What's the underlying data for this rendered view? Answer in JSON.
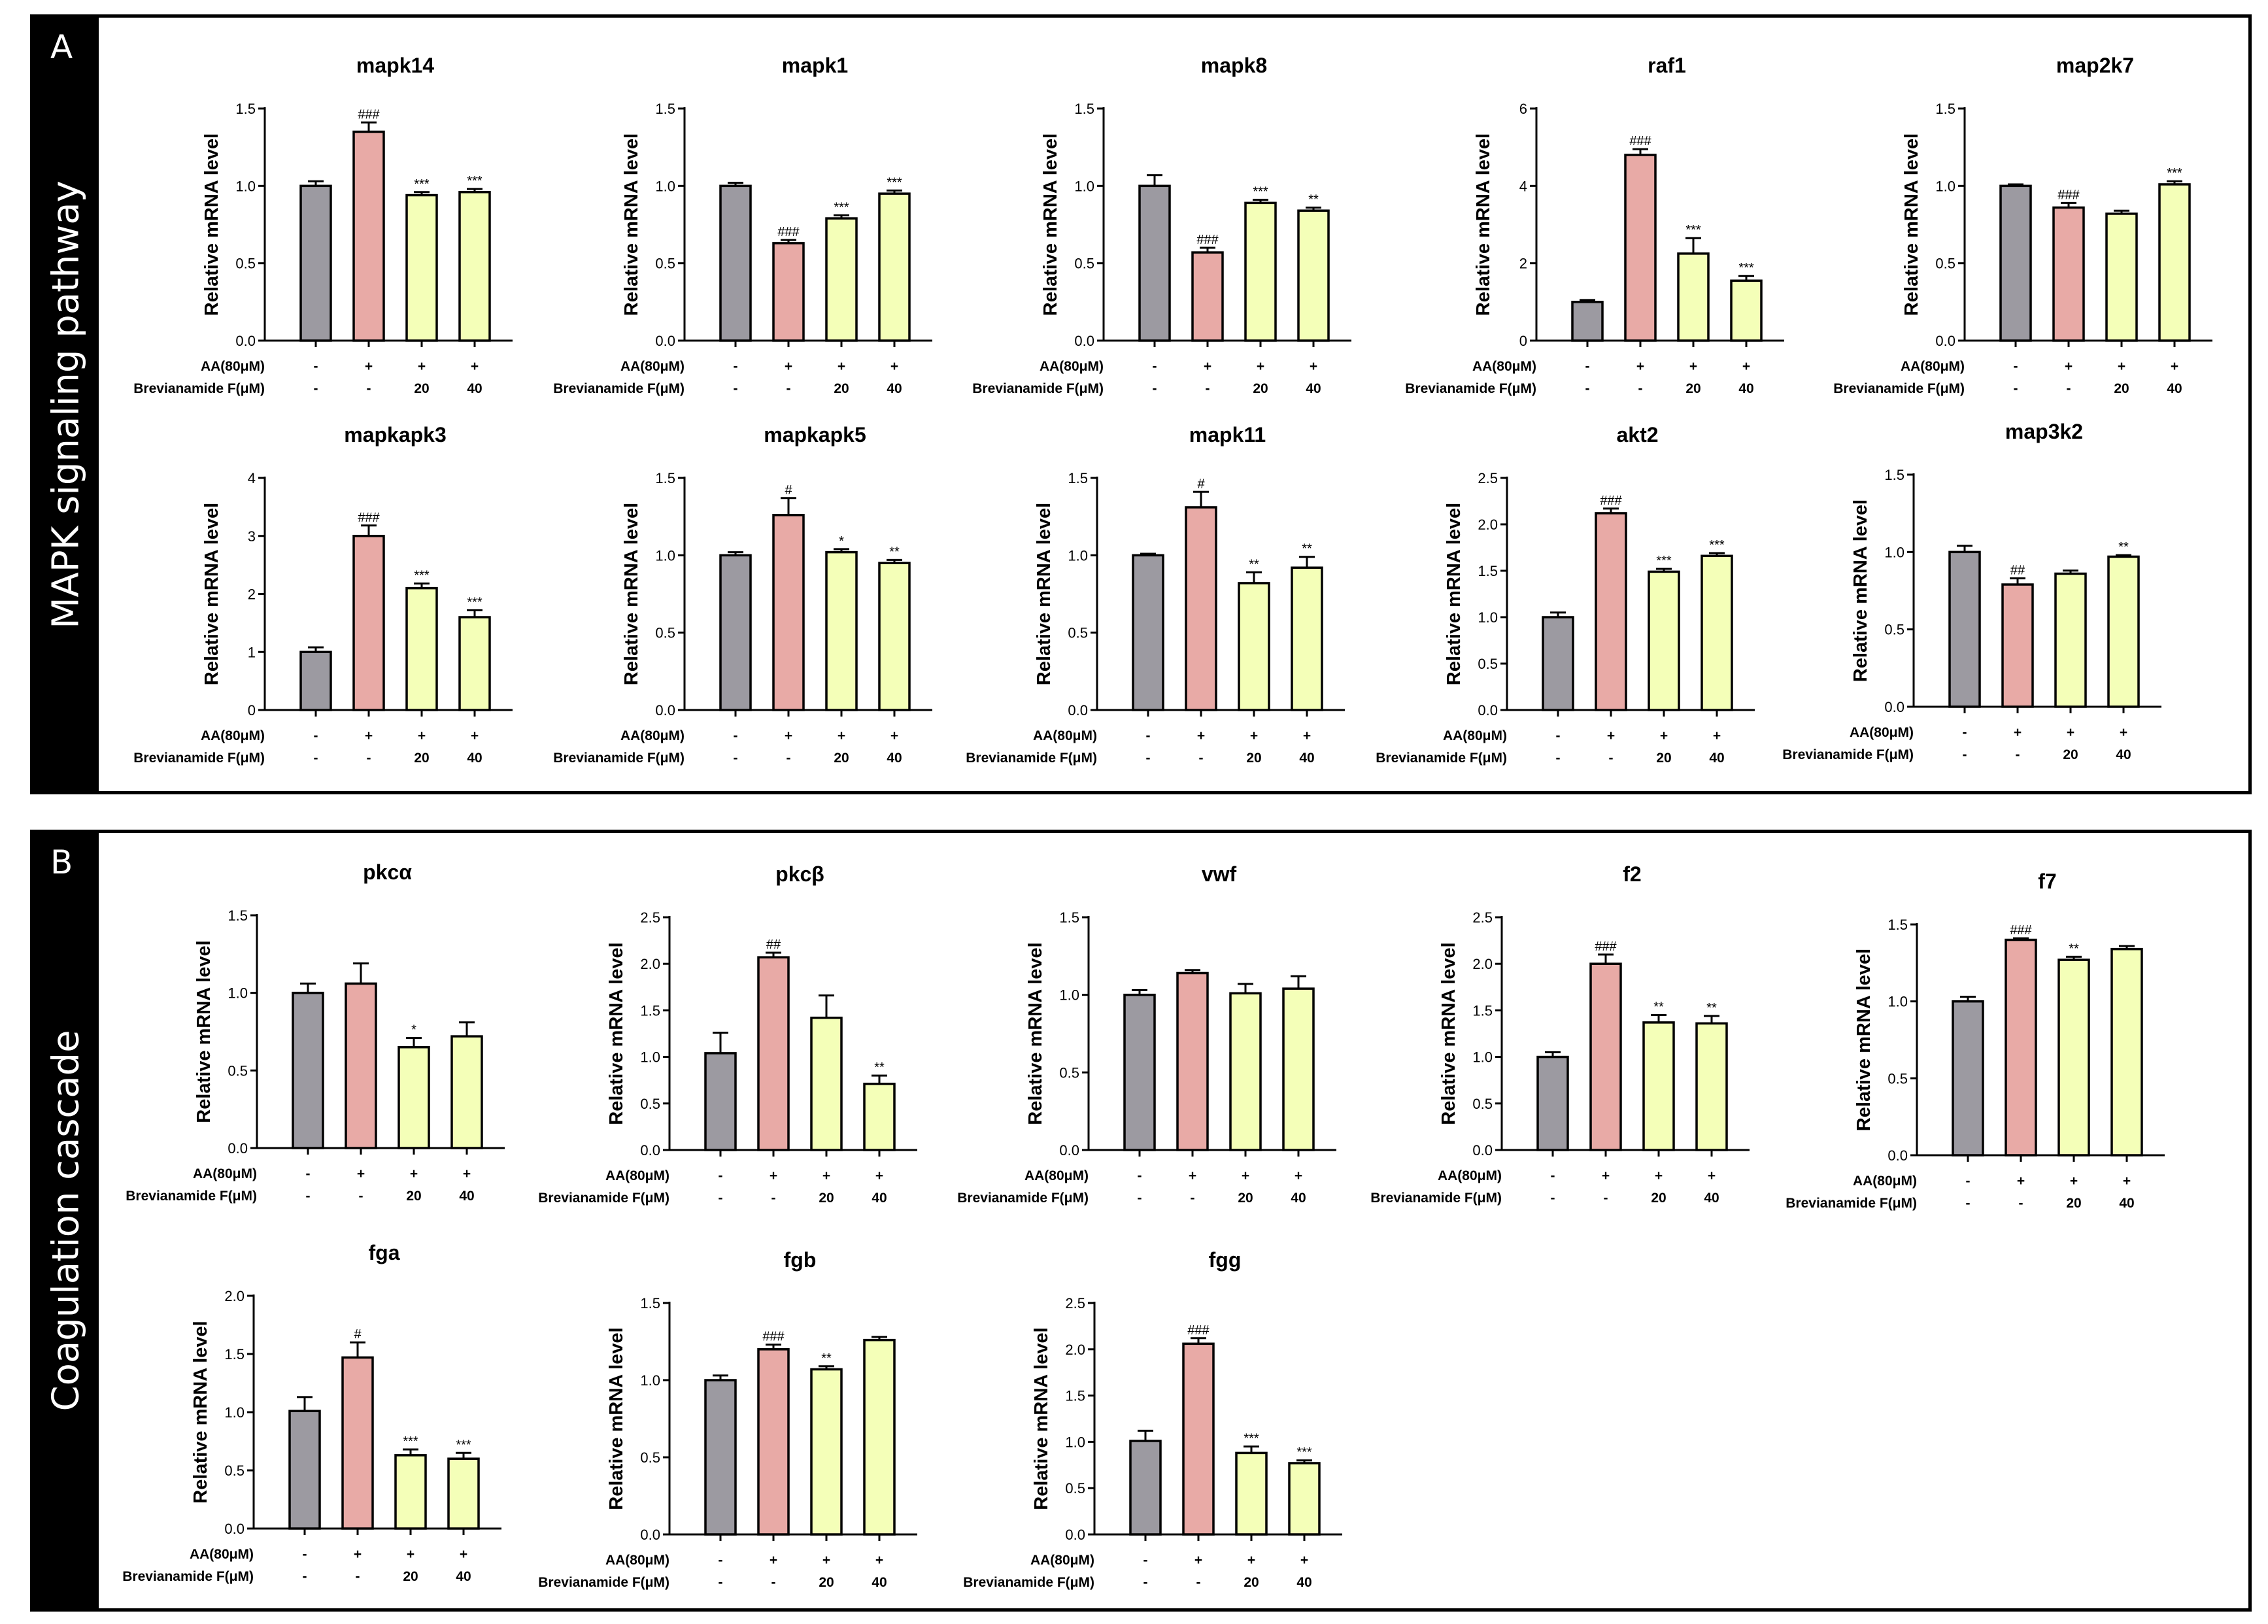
{
  "panels": [
    {
      "letter": "A",
      "title": "MAPK signaling pathway"
    },
    {
      "letter": "B",
      "title": "Coagulation cascade"
    }
  ],
  "colors": {
    "control": "#9c9aa1",
    "model": "#e8aaa6",
    "treatment": "#f4ffb8",
    "outline": "#000000"
  },
  "chart_data": [
    {
      "type": "bar",
      "panel": "A",
      "title": "mapk14",
      "ylabel": "Relative mRNA level",
      "ylim": [
        0,
        1.5
      ],
      "yticks": [
        "0.0",
        "0.5",
        "1.0",
        "1.5"
      ],
      "values": [
        1.0,
        1.35,
        0.94,
        0.96
      ],
      "errors": [
        0.03,
        0.06,
        0.02,
        0.02
      ],
      "marks": [
        "",
        "###",
        "***",
        "***"
      ],
      "row_labels": [
        "AA(80μM)",
        "Brevianamide F(μM)"
      ],
      "row1": [
        "-",
        "+",
        "+",
        "+"
      ],
      "row2": [
        "-",
        "-",
        "20",
        "40"
      ]
    },
    {
      "type": "bar",
      "panel": "A",
      "title": "mapk1",
      "ylabel": "Relative mRNA level",
      "ylim": [
        0,
        1.5
      ],
      "yticks": [
        "0.0",
        "0.5",
        "1.0",
        "1.5"
      ],
      "values": [
        1.0,
        0.63,
        0.79,
        0.95
      ],
      "errors": [
        0.02,
        0.02,
        0.02,
        0.02
      ],
      "marks": [
        "",
        "###",
        "***",
        "***"
      ],
      "row_labels": [
        "AA(80μM)",
        "Brevianamide F(μM)"
      ],
      "row1": [
        "-",
        "+",
        "+",
        "+"
      ],
      "row2": [
        "-",
        "-",
        "20",
        "40"
      ]
    },
    {
      "type": "bar",
      "panel": "A",
      "title": "mapk8",
      "ylabel": "Relative mRNA level",
      "ylim": [
        0,
        1.5
      ],
      "yticks": [
        "0.0",
        "0.5",
        "1.0",
        "1.5"
      ],
      "values": [
        1.0,
        0.57,
        0.89,
        0.84
      ],
      "errors": [
        0.07,
        0.03,
        0.02,
        0.02
      ],
      "marks": [
        "",
        "###",
        "***",
        "**"
      ],
      "row_labels": [
        "AA(80μM)",
        "Brevianamide F(μM)"
      ],
      "row1": [
        "-",
        "+",
        "+",
        "+"
      ],
      "row2": [
        "-",
        "-",
        "20",
        "40"
      ]
    },
    {
      "type": "bar",
      "panel": "A",
      "title": "raf1",
      "ylabel": "Relative mRNA level",
      "ylim": [
        0,
        6
      ],
      "yticks": [
        "0",
        "2",
        "4",
        "6"
      ],
      "values": [
        1.0,
        4.8,
        2.25,
        1.55
      ],
      "errors": [
        0.05,
        0.15,
        0.4,
        0.12
      ],
      "marks": [
        "",
        "###",
        "***",
        "***"
      ],
      "row_labels": [
        "AA(80μM)",
        "Brevianamide F(μM)"
      ],
      "row1": [
        "-",
        "+",
        "+",
        "+"
      ],
      "row2": [
        "-",
        "-",
        "20",
        "40"
      ]
    },
    {
      "type": "bar",
      "panel": "A",
      "title": "map2k7",
      "ylabel": "Relative mRNA level",
      "ylim": [
        0,
        1.5
      ],
      "yticks": [
        "0.0",
        "0.5",
        "1.0",
        "1.5"
      ],
      "values": [
        1.0,
        0.86,
        0.82,
        1.01
      ],
      "errors": [
        0.01,
        0.03,
        0.02,
        0.02
      ],
      "marks": [
        "",
        "###",
        "",
        "***"
      ],
      "row_labels": [
        "AA(80μM)",
        "Brevianamide F(μM)"
      ],
      "row1": [
        "-",
        "+",
        "+",
        "+"
      ],
      "row2": [
        "-",
        "-",
        "20",
        "40"
      ]
    },
    {
      "type": "bar",
      "panel": "A",
      "title": "mapkapk3",
      "ylabel": "Relative mRNA level",
      "ylim": [
        0,
        4
      ],
      "yticks": [
        "0",
        "1",
        "2",
        "3",
        "4"
      ],
      "values": [
        1.0,
        3.0,
        2.1,
        1.6
      ],
      "errors": [
        0.08,
        0.18,
        0.08,
        0.12
      ],
      "marks": [
        "",
        "###",
        "***",
        "***"
      ],
      "row_labels": [
        "AA(80μM)",
        "Brevianamide F(μM)"
      ],
      "row1": [
        "-",
        "+",
        "+",
        "+"
      ],
      "row2": [
        "-",
        "-",
        "20",
        "40"
      ]
    },
    {
      "type": "bar",
      "panel": "A",
      "title": "mapkapk5",
      "ylabel": "Relative mRNA level",
      "ylim": [
        0,
        1.5
      ],
      "yticks": [
        "0.0",
        "0.5",
        "1.0",
        "1.5"
      ],
      "values": [
        1.0,
        1.26,
        1.02,
        0.95
      ],
      "errors": [
        0.02,
        0.11,
        0.02,
        0.02
      ],
      "marks": [
        "",
        "#",
        "*",
        "**"
      ],
      "row_labels": [
        "AA(80μM)",
        "Brevianamide F(μM)"
      ],
      "row1": [
        "-",
        "+",
        "+",
        "+"
      ],
      "row2": [
        "-",
        "-",
        "20",
        "40"
      ]
    },
    {
      "type": "bar",
      "panel": "A",
      "title": "mapk11",
      "ylabel": "Relative mRNA level",
      "ylim": [
        0,
        1.5
      ],
      "yticks": [
        "0.0",
        "0.5",
        "1.0",
        "1.5"
      ],
      "values": [
        1.0,
        1.31,
        0.82,
        0.92
      ],
      "errors": [
        0.01,
        0.1,
        0.07,
        0.07
      ],
      "marks": [
        "",
        "#",
        "**",
        "**"
      ],
      "row_labels": [
        "AA(80μM)",
        "Brevianamide F(μM)"
      ],
      "row1": [
        "-",
        "+",
        "+",
        "+"
      ],
      "row2": [
        "-",
        "-",
        "20",
        "40"
      ]
    },
    {
      "type": "bar",
      "panel": "A",
      "title": "akt2",
      "ylabel": "Relative mRNA level",
      "ylim": [
        0,
        2.5
      ],
      "yticks": [
        "0.0",
        "0.5",
        "1.0",
        "1.5",
        "2.0",
        "2.5"
      ],
      "values": [
        1.0,
        2.12,
        1.49,
        1.66
      ],
      "errors": [
        0.05,
        0.05,
        0.03,
        0.03
      ],
      "marks": [
        "",
        "###",
        "***",
        "***"
      ],
      "row_labels": [
        "AA(80μM)",
        "Brevianamide F(μM)"
      ],
      "row1": [
        "-",
        "+",
        "+",
        "+"
      ],
      "row2": [
        "-",
        "-",
        "20",
        "40"
      ]
    },
    {
      "type": "bar",
      "panel": "A",
      "title": "map3k2",
      "ylabel": "Relative mRNA level",
      "ylim": [
        0,
        1.5
      ],
      "yticks": [
        "0.0",
        "0.5",
        "1.0",
        "1.5"
      ],
      "values": [
        1.0,
        0.79,
        0.86,
        0.97
      ],
      "errors": [
        0.04,
        0.04,
        0.02,
        0.01
      ],
      "marks": [
        "",
        "##",
        "",
        "**"
      ],
      "row_labels": [
        "AA(80μM)",
        "Brevianamide F(μM)"
      ],
      "row1": [
        "-",
        "+",
        "+",
        "+"
      ],
      "row2": [
        "-",
        "-",
        "20",
        "40"
      ]
    },
    {
      "type": "bar",
      "panel": "B",
      "title": "pkcα",
      "ylabel": "Relative mRNA level",
      "ylim": [
        0,
        1.5
      ],
      "yticks": [
        "0.0",
        "0.5",
        "1.0",
        "1.5"
      ],
      "values": [
        1.0,
        1.06,
        0.65,
        0.72
      ],
      "errors": [
        0.06,
        0.13,
        0.06,
        0.09
      ],
      "marks": [
        "",
        "",
        "*",
        ""
      ],
      "row_labels": [
        "AA(80μM)",
        "Brevianamide F(μM)"
      ],
      "row1": [
        "-",
        "+",
        "+",
        "+"
      ],
      "row2": [
        "-",
        "-",
        "20",
        "40"
      ]
    },
    {
      "type": "bar",
      "panel": "B",
      "title": "pkcβ",
      "ylabel": "Relative mRNA level",
      "ylim": [
        0,
        2.5
      ],
      "yticks": [
        "0.0",
        "0.5",
        "1.0",
        "1.5",
        "2.0",
        "2.5"
      ],
      "values": [
        1.04,
        2.07,
        1.42,
        0.71
      ],
      "errors": [
        0.22,
        0.05,
        0.24,
        0.09
      ],
      "marks": [
        "",
        "##",
        "",
        "**"
      ],
      "row_labels": [
        "AA(80μM)",
        "Brevianamide F(μM)"
      ],
      "row1": [
        "-",
        "+",
        "+",
        "+"
      ],
      "row2": [
        "-",
        "-",
        "20",
        "40"
      ]
    },
    {
      "type": "bar",
      "panel": "B",
      "title": "vwf",
      "ylabel": "Relative mRNA level",
      "ylim": [
        0,
        1.5
      ],
      "yticks": [
        "0.0",
        "0.5",
        "1.0",
        "1.5"
      ],
      "values": [
        1.0,
        1.14,
        1.01,
        1.04
      ],
      "errors": [
        0.03,
        0.02,
        0.06,
        0.08
      ],
      "marks": [
        "",
        "",
        "",
        ""
      ],
      "row_labels": [
        "AA(80μM)",
        "Brevianamide F(μM)"
      ],
      "row1": [
        "-",
        "+",
        "+",
        "+"
      ],
      "row2": [
        "-",
        "-",
        "20",
        "40"
      ]
    },
    {
      "type": "bar",
      "panel": "B",
      "title": "f2",
      "ylabel": "Relative mRNA level",
      "ylim": [
        0,
        2.5
      ],
      "yticks": [
        "0.0",
        "0.5",
        "1.0",
        "1.5",
        "2.0",
        "2.5"
      ],
      "values": [
        1.0,
        2.0,
        1.37,
        1.36
      ],
      "errors": [
        0.05,
        0.1,
        0.08,
        0.08
      ],
      "marks": [
        "",
        "###",
        "**",
        "**"
      ],
      "row_labels": [
        "AA(80μM)",
        "Brevianamide F(μM)"
      ],
      "row1": [
        "-",
        "+",
        "+",
        "+"
      ],
      "row2": [
        "-",
        "-",
        "20",
        "40"
      ]
    },
    {
      "type": "bar",
      "panel": "B",
      "title": "f7",
      "ylabel": "Relative mRNA level",
      "ylim": [
        0,
        1.5
      ],
      "yticks": [
        "0.0",
        "0.5",
        "1.0",
        "1.5"
      ],
      "values": [
        1.0,
        1.4,
        1.27,
        1.34
      ],
      "errors": [
        0.03,
        0.01,
        0.02,
        0.02
      ],
      "marks": [
        "",
        "###",
        "**",
        ""
      ],
      "row_labels": [
        "AA(80μM)",
        "Brevianamide F(μM)"
      ],
      "row1": [
        "-",
        "+",
        "+",
        "+"
      ],
      "row2": [
        "-",
        "-",
        "20",
        "40"
      ]
    },
    {
      "type": "bar",
      "panel": "B",
      "title": "fga",
      "ylabel": "Relative mRNA level",
      "ylim": [
        0,
        2.0
      ],
      "yticks": [
        "0.0",
        "0.5",
        "1.0",
        "1.5",
        "2.0"
      ],
      "values": [
        1.01,
        1.47,
        0.63,
        0.6
      ],
      "errors": [
        0.12,
        0.13,
        0.05,
        0.05
      ],
      "marks": [
        "",
        "#",
        "***",
        "***"
      ],
      "row_labels": [
        "AA(80μM)",
        "Brevianamide F(μM)"
      ],
      "row1": [
        "-",
        "+",
        "+",
        "+"
      ],
      "row2": [
        "-",
        "-",
        "20",
        "40"
      ]
    },
    {
      "type": "bar",
      "panel": "B",
      "title": "fgb",
      "ylabel": "Relative mRNA level",
      "ylim": [
        0,
        1.5
      ],
      "yticks": [
        "0.0",
        "0.5",
        "1.0",
        "1.5"
      ],
      "values": [
        1.0,
        1.2,
        1.07,
        1.26
      ],
      "errors": [
        0.03,
        0.03,
        0.02,
        0.02
      ],
      "marks": [
        "",
        "###",
        "**",
        ""
      ],
      "row_labels": [
        "AA(80μM)",
        "Brevianamide F(μM)"
      ],
      "row1": [
        "-",
        "+",
        "+",
        "+"
      ],
      "row2": [
        "-",
        "-",
        "20",
        "40"
      ]
    },
    {
      "type": "bar",
      "panel": "B",
      "title": "fgg",
      "ylabel": "Relative mRNA level",
      "ylim": [
        0,
        2.5
      ],
      "yticks": [
        "0.0",
        "0.5",
        "1.0",
        "1.5",
        "2.0",
        "2.5"
      ],
      "values": [
        1.01,
        2.06,
        0.88,
        0.77
      ],
      "errors": [
        0.11,
        0.06,
        0.07,
        0.03
      ],
      "marks": [
        "",
        "###",
        "***",
        "***"
      ],
      "row_labels": [
        "AA(80μM)",
        "Brevianamide F(μM)"
      ],
      "row1": [
        "-",
        "+",
        "+",
        "+"
      ],
      "row2": [
        "-",
        "-",
        "20",
        "40"
      ]
    }
  ]
}
